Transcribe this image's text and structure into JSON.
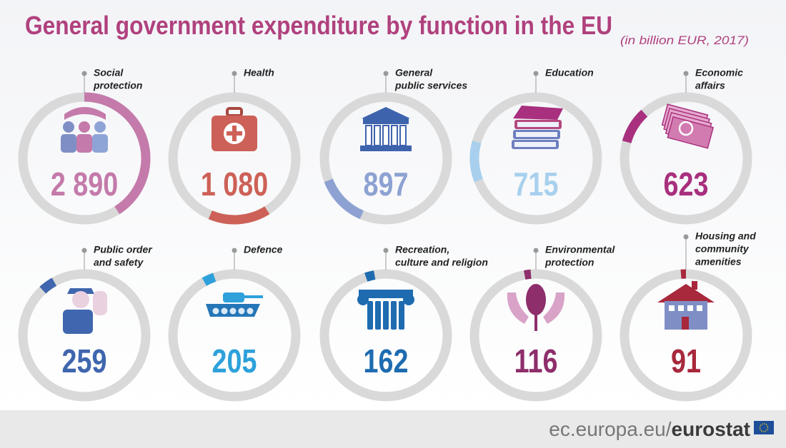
{
  "chart_data": {
    "type": "ring",
    "title": "General government expenditure by function in the EU",
    "subtitle": "(in billion EUR, 2017)",
    "categories": [
      [
        "Social",
        "protection"
      ],
      [
        "Health"
      ],
      [
        "General",
        "public services"
      ],
      [
        "Education"
      ],
      [
        "Economic",
        "affairs"
      ],
      [
        "Public order",
        "and safety"
      ],
      [
        "Defence"
      ],
      [
        "Recreation,",
        "culture and religion"
      ],
      [
        "Environmental",
        "protection"
      ],
      [
        "Housing and",
        "community",
        "amenities"
      ]
    ],
    "values": [
      2890,
      1080,
      897,
      715,
      623,
      259,
      205,
      162,
      116,
      91
    ],
    "value_labels": [
      "2 890",
      "1 080",
      "897",
      "715",
      "623",
      "259",
      "205",
      "162",
      "116",
      "91"
    ],
    "colors": [
      "#c47aaa",
      "#cd6157",
      "#8da2d2",
      "#a8d0ee",
      "#a8307e",
      "#3f66ae",
      "#2ea1db",
      "#1e6bb0",
      "#8e2e6b",
      "#a8283c"
    ]
  },
  "footer": {
    "domain": "ec.europa.eu/",
    "brand": "eurostat"
  }
}
